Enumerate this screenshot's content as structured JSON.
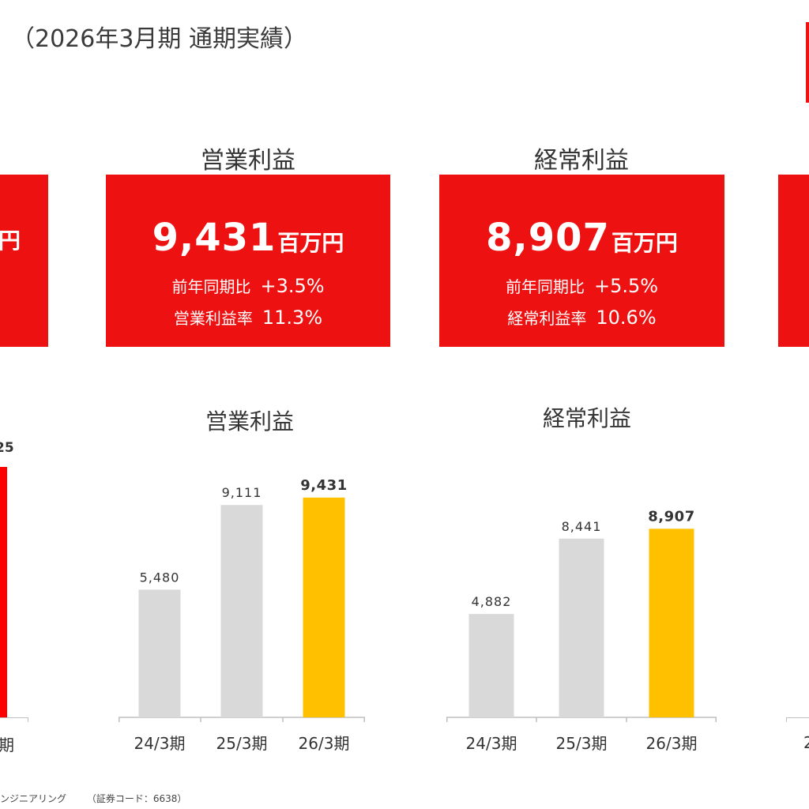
{
  "header": {
    "title": "（2026年3月期 通期実績）"
  },
  "kpis": [
    {
      "id": "operating-profit",
      "heading": "営業利益",
      "value": "9,431",
      "unit": "百万円",
      "yoy_label": "前年同期比",
      "yoy_value": "+3.5%",
      "ratio_label": "営業利益率",
      "ratio_value": "11.3%"
    },
    {
      "id": "ordinary-profit",
      "heading": "経常利益",
      "value": "8,907",
      "unit": "百万円",
      "yoy_label": "前年同期比",
      "yoy_value": "+5.5%",
      "ratio_label": "経常利益率",
      "ratio_value": "10.6%"
    }
  ],
  "partial": {
    "left_kpi_unit_fragment": "円",
    "left_chart_value_fragment": "25",
    "left_chart_category_fragment": "期",
    "right_chart_category_fragment": "2"
  },
  "colors": {
    "kpi_box": "#ee1111",
    "bar_past": "#d9d9d9",
    "bar_current": "#ffc000",
    "left_bar": "#ff0000"
  },
  "chart_data": [
    {
      "type": "bar",
      "title": "営業利益",
      "categories": [
        "24/3期",
        "25/3期",
        "26/3期"
      ],
      "values": [
        5480,
        9111,
        9431
      ],
      "value_labels": [
        "5,480",
        "9,111",
        "9,431"
      ],
      "highlight_index": 2,
      "ylim": [
        0,
        10000
      ],
      "grid": false
    },
    {
      "type": "bar",
      "title": "経常利益",
      "categories": [
        "24/3期",
        "25/3期",
        "26/3期"
      ],
      "values": [
        4882,
        8441,
        8907
      ],
      "value_labels": [
        "4,882",
        "8,441",
        "8,907"
      ],
      "highlight_index": 2,
      "ylim": [
        0,
        10000
      ],
      "grid": false
    }
  ],
  "footer": {
    "company_fragment": "ンジニアリング",
    "code_text": "（証券コード：6638）"
  }
}
